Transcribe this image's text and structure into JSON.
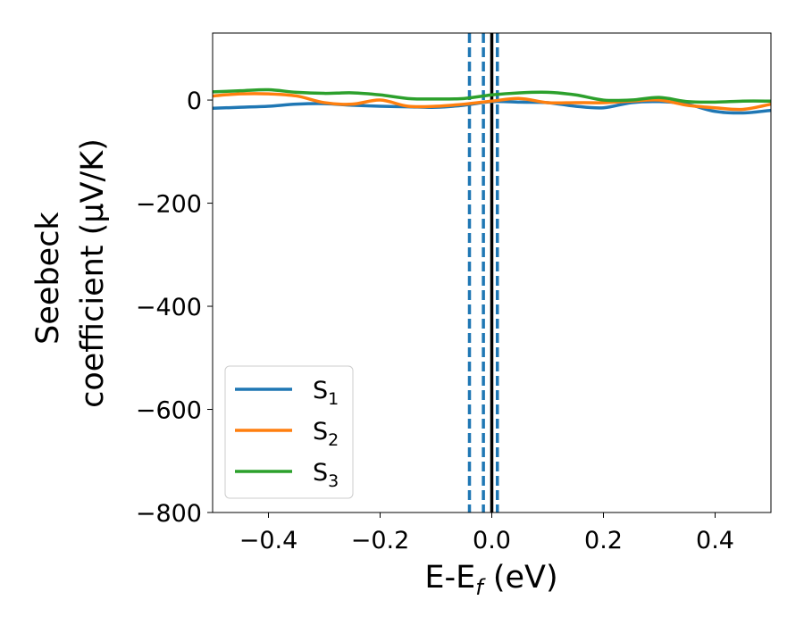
{
  "chart_data": {
    "type": "line",
    "xlabel": "E-E",
    "xlabel_sub": "f",
    "xlabel_unit": " (eV)",
    "ylabel_line1": "Seebeck",
    "ylabel_line2": "coefficient  (μV/K)",
    "xlim": [
      -0.5,
      0.5
    ],
    "ylim": [
      -800,
      130
    ],
    "xticks": [
      -0.4,
      -0.2,
      0.0,
      0.2,
      0.4
    ],
    "xtick_labels": [
      "−0.4",
      "−0.2",
      "0.0",
      "0.2",
      "0.4"
    ],
    "yticks": [
      0,
      -200,
      -400,
      -600,
      -800
    ],
    "ytick_labels": [
      "0",
      "−200",
      "−400",
      "−600",
      "−800"
    ],
    "grid": false,
    "legend_position": "lower-left",
    "x": [
      -0.5,
      -0.45,
      -0.4,
      -0.35,
      -0.3,
      -0.25,
      -0.2,
      -0.15,
      -0.1,
      -0.05,
      0.0,
      0.05,
      0.1,
      0.15,
      0.2,
      0.25,
      0.3,
      0.35,
      0.4,
      0.45,
      0.5
    ],
    "series": [
      {
        "name": "S",
        "name_sub": "1",
        "color": "#1f77b4",
        "values": [
          -16,
          -14,
          -12,
          -8,
          -7,
          -10,
          -12,
          -13,
          -14,
          -10,
          -3,
          -4,
          -5,
          -12,
          -15,
          -5,
          -3,
          -8,
          -22,
          -25,
          -20
        ]
      },
      {
        "name": "S",
        "name_sub": "2",
        "color": "#ff7f0e",
        "values": [
          8,
          12,
          12,
          8,
          -5,
          -8,
          0,
          -12,
          -12,
          -8,
          -2,
          3,
          -5,
          -5,
          -5,
          -2,
          0,
          -10,
          -15,
          -18,
          -8
        ]
      },
      {
        "name": "S",
        "name_sub": "3",
        "color": "#2ca02c",
        "values": [
          16,
          18,
          20,
          15,
          13,
          14,
          10,
          3,
          2,
          3,
          10,
          14,
          15,
          10,
          0,
          0,
          5,
          -3,
          -4,
          -2,
          -2
        ]
      }
    ],
    "vlines": [
      {
        "x": -0.04,
        "style": "dashed",
        "color": "#1f77b4"
      },
      {
        "x": -0.015,
        "style": "dashed",
        "color": "#1f77b4"
      },
      {
        "x": 0.01,
        "style": "dashed",
        "color": "#1f77b4"
      },
      {
        "x": 0.0,
        "style": "solid",
        "color": "#000000"
      }
    ]
  }
}
